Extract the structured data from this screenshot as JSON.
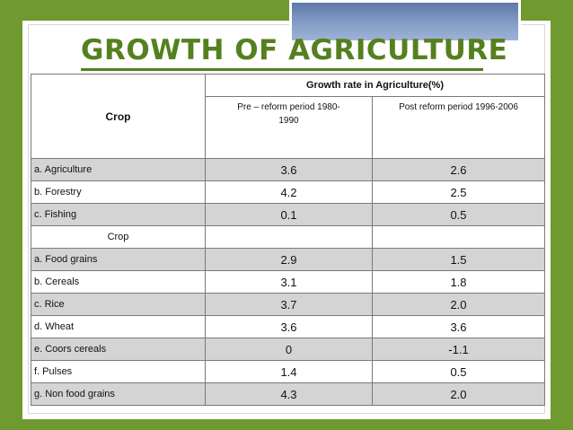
{
  "slide": {
    "title": "GROWTH OF AGRICULTURE",
    "accent_color": "#6f9a2f",
    "title_color": "#55801f"
  },
  "table": {
    "crop_header": "Crop",
    "growth_header": "Growth rate in Agriculture(%)",
    "pre_reform_header": "Pre – reform period 1980-1990",
    "post_reform_header": "Post reform period 1996-2006",
    "rows_group1": [
      {
        "crop": "a. Agriculture",
        "pre": "3.6",
        "post": "2.6"
      },
      {
        "crop": "b. Forestry",
        "pre": "4.2",
        "post": "2.5"
      },
      {
        "crop": "c. Fishing",
        "pre": "0.1",
        "post": "0.5"
      }
    ],
    "subheader": "Crop",
    "rows_group2": [
      {
        "crop": "a. Food grains",
        "pre": "2.9",
        "post": "1.5"
      },
      {
        "crop": "b. Cereals",
        "pre": "3.1",
        "post": "1.8"
      },
      {
        "crop": "c. Rice",
        "pre": "3.7",
        "post": "2.0"
      },
      {
        "crop": "d. Wheat",
        "pre": "3.6",
        "post": "3.6"
      },
      {
        "crop": "e. Coors cereals",
        "pre": "0",
        "post": "-1.1"
      },
      {
        "crop": "f. Pulses",
        "pre": "1.4",
        "post": "0.5"
      },
      {
        "crop": "g. Non food grains",
        "pre": "4.3",
        "post": "2.0"
      }
    ]
  }
}
